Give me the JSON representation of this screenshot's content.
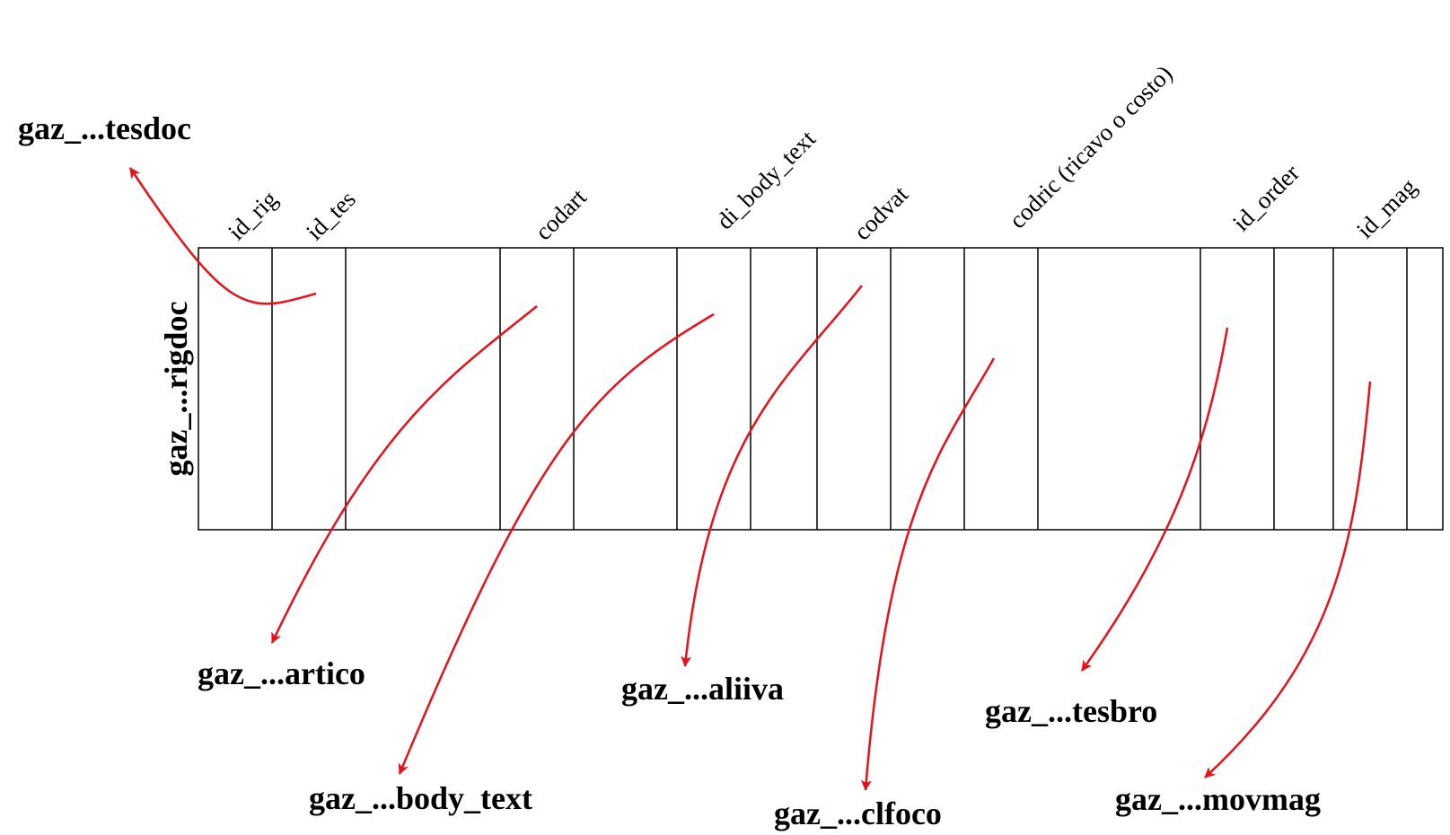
{
  "table": {
    "name": "gaz_...rigdoc",
    "columns": [
      "id_rig",
      "id_tes",
      "codart",
      "di_body_text",
      "codvat",
      "codric (ricavo o costo)",
      "id_order",
      "id_mag"
    ]
  },
  "references": [
    {
      "field": "id_tes",
      "target": "gaz_...tesdoc"
    },
    {
      "field": "codart",
      "target": "gaz_...artico"
    },
    {
      "field": "di_body_text",
      "target": "gaz_...body_text"
    },
    {
      "field": "codvat",
      "target": "gaz_...aliiva"
    },
    {
      "field": "codric (ricavo o costo)",
      "target": "gaz_...clfoco"
    },
    {
      "field": "id_order",
      "target": "gaz_...tesbro"
    },
    {
      "field": "id_mag",
      "target": "gaz_...movmag"
    }
  ],
  "colors": {
    "arrow": "#e8101a",
    "outline": "#000000",
    "text": "#000000"
  }
}
